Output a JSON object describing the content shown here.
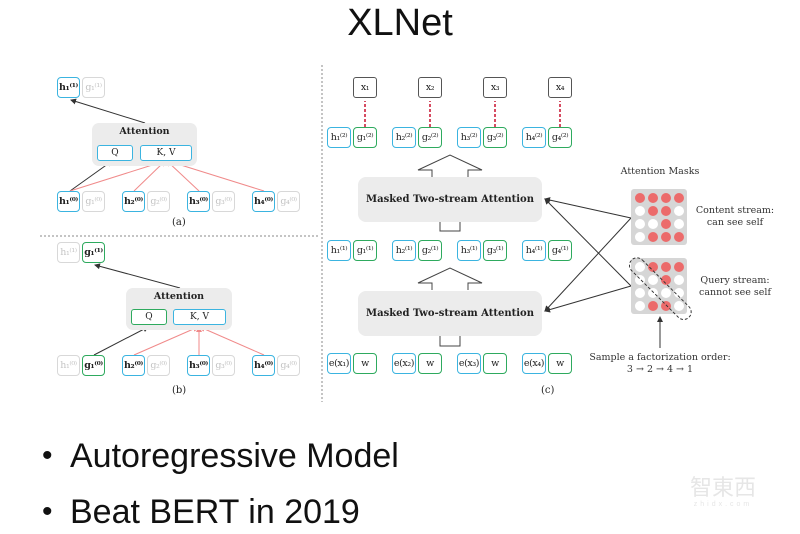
{
  "slide": {
    "title": "XLNet",
    "bullets": [
      "Autoregressive Model",
      "Beat BERT in 2019"
    ],
    "watermark": {
      "text": "智東西",
      "sub": "zhidx.com"
    }
  },
  "panel_a": {
    "caption": "(a)",
    "attention": {
      "label": "Attention",
      "q": "Q",
      "kv": "K, V"
    },
    "output": [
      {
        "base": "h",
        "sub": "1",
        "sup": "(1)",
        "style": "blue",
        "bold": true
      },
      {
        "base": "g",
        "sub": "1",
        "sup": "(1)",
        "style": "faded"
      }
    ],
    "inputs": [
      {
        "base": "h",
        "sub": "1",
        "sup": "(0)",
        "style": "blue",
        "bold": true
      },
      {
        "base": "g",
        "sub": "1",
        "sup": "(0)",
        "style": "faded"
      },
      {
        "base": "h",
        "sub": "2",
        "sup": "(0)",
        "style": "blue",
        "bold": true
      },
      {
        "base": "g",
        "sub": "2",
        "sup": "(0)",
        "style": "faded"
      },
      {
        "base": "h",
        "sub": "3",
        "sup": "(0)",
        "style": "blue",
        "bold": true
      },
      {
        "base": "g",
        "sub": "3",
        "sup": "(0)",
        "style": "faded"
      },
      {
        "base": "h",
        "sub": "4",
        "sup": "(0)",
        "style": "blue",
        "bold": true
      },
      {
        "base": "g",
        "sub": "4",
        "sup": "(0)",
        "style": "faded"
      }
    ]
  },
  "panel_b": {
    "caption": "(b)",
    "attention": {
      "label": "Attention",
      "q": "Q",
      "kv": "K, V"
    },
    "output": [
      {
        "base": "h",
        "sub": "1",
        "sup": "(1)",
        "style": "faded"
      },
      {
        "base": "g",
        "sub": "1",
        "sup": "(1)",
        "style": "green",
        "bold": true
      }
    ],
    "inputs": [
      {
        "base": "h",
        "sub": "1",
        "sup": "(0)",
        "style": "faded"
      },
      {
        "base": "g",
        "sub": "1",
        "sup": "(0)",
        "style": "green",
        "bold": true
      },
      {
        "base": "h",
        "sub": "2",
        "sup": "(0)",
        "style": "blue",
        "bold": true
      },
      {
        "base": "g",
        "sub": "2",
        "sup": "(0)",
        "style": "faded"
      },
      {
        "base": "h",
        "sub": "3",
        "sup": "(0)",
        "style": "blue",
        "bold": true
      },
      {
        "base": "g",
        "sub": "3",
        "sup": "(0)",
        "style": "faded"
      },
      {
        "base": "h",
        "sub": "4",
        "sup": "(0)",
        "style": "blue",
        "bold": true
      },
      {
        "base": "g",
        "sub": "4",
        "sup": "(0)",
        "style": "faded"
      }
    ]
  },
  "panel_c": {
    "caption": "(c)",
    "block_label": "Masked Two-stream Attention",
    "outputs": [
      {
        "base": "x",
        "sub": "1",
        "style": "plain"
      },
      {
        "base": "x",
        "sub": "2",
        "style": "plain"
      },
      {
        "base": "x",
        "sub": "3",
        "style": "plain"
      },
      {
        "base": "x",
        "sub": "4",
        "style": "plain"
      }
    ],
    "layer2": [
      {
        "base": "h",
        "sub": "1",
        "sup": "(2)",
        "style": "blue"
      },
      {
        "base": "g",
        "sub": "1",
        "sup": "(2)",
        "style": "green"
      },
      {
        "base": "h",
        "sub": "2",
        "sup": "(2)",
        "style": "blue"
      },
      {
        "base": "g",
        "sub": "2",
        "sup": "(2)",
        "style": "green"
      },
      {
        "base": "h",
        "sub": "3",
        "sup": "(2)",
        "style": "blue"
      },
      {
        "base": "g",
        "sub": "3",
        "sup": "(2)",
        "style": "green"
      },
      {
        "base": "h",
        "sub": "4",
        "sup": "(2)",
        "style": "blue"
      },
      {
        "base": "g",
        "sub": "4",
        "sup": "(2)",
        "style": "green"
      }
    ],
    "layer1": [
      {
        "base": "h",
        "sub": "1",
        "sup": "(1)",
        "style": "blue"
      },
      {
        "base": "g",
        "sub": "1",
        "sup": "(1)",
        "style": "green"
      },
      {
        "base": "h",
        "sub": "2",
        "sup": "(1)",
        "style": "blue"
      },
      {
        "base": "g",
        "sub": "2",
        "sup": "(1)",
        "style": "green"
      },
      {
        "base": "h",
        "sub": "3",
        "sup": "(1)",
        "style": "blue"
      },
      {
        "base": "g",
        "sub": "3",
        "sup": "(1)",
        "style": "green"
      },
      {
        "base": "h",
        "sub": "4",
        "sup": "(1)",
        "style": "blue"
      },
      {
        "base": "g",
        "sub": "4",
        "sup": "(1)",
        "style": "green"
      }
    ],
    "inputs": [
      {
        "base": "e(x",
        "sub": "1",
        "post": ")",
        "style": "blue"
      },
      {
        "base": "w",
        "style": "green"
      },
      {
        "base": "e(x",
        "sub": "2",
        "post": ")",
        "style": "blue"
      },
      {
        "base": "w",
        "style": "green"
      },
      {
        "base": "e(x",
        "sub": "3",
        "post": ")",
        "style": "blue"
      },
      {
        "base": "w",
        "style": "green"
      },
      {
        "base": "e(x",
        "sub": "4",
        "post": ")",
        "style": "blue"
      },
      {
        "base": "w",
        "style": "green"
      }
    ],
    "masks": {
      "title": "Attention Masks",
      "content": {
        "label1": "Content stream:",
        "label2": "can see self",
        "matrix": [
          [
            1,
            1,
            1,
            1
          ],
          [
            0,
            1,
            1,
            0
          ],
          [
            0,
            0,
            1,
            0
          ],
          [
            0,
            1,
            1,
            1
          ]
        ]
      },
      "query": {
        "label1": "Query stream:",
        "label2": "cannot see self",
        "matrix": [
          [
            0,
            1,
            1,
            1
          ],
          [
            0,
            0,
            1,
            0
          ],
          [
            0,
            0,
            0,
            0
          ],
          [
            0,
            1,
            1,
            0
          ]
        ]
      }
    },
    "factorization": {
      "label": "Sample a factorization order:",
      "order": "3 → 2 → 4 → 1"
    }
  },
  "colors": {
    "content_stream": "#3bb4e0",
    "query_stream": "#2eaa5e",
    "mask_on": "#ec6b6b",
    "attention_edge": "#f08a8a"
  }
}
